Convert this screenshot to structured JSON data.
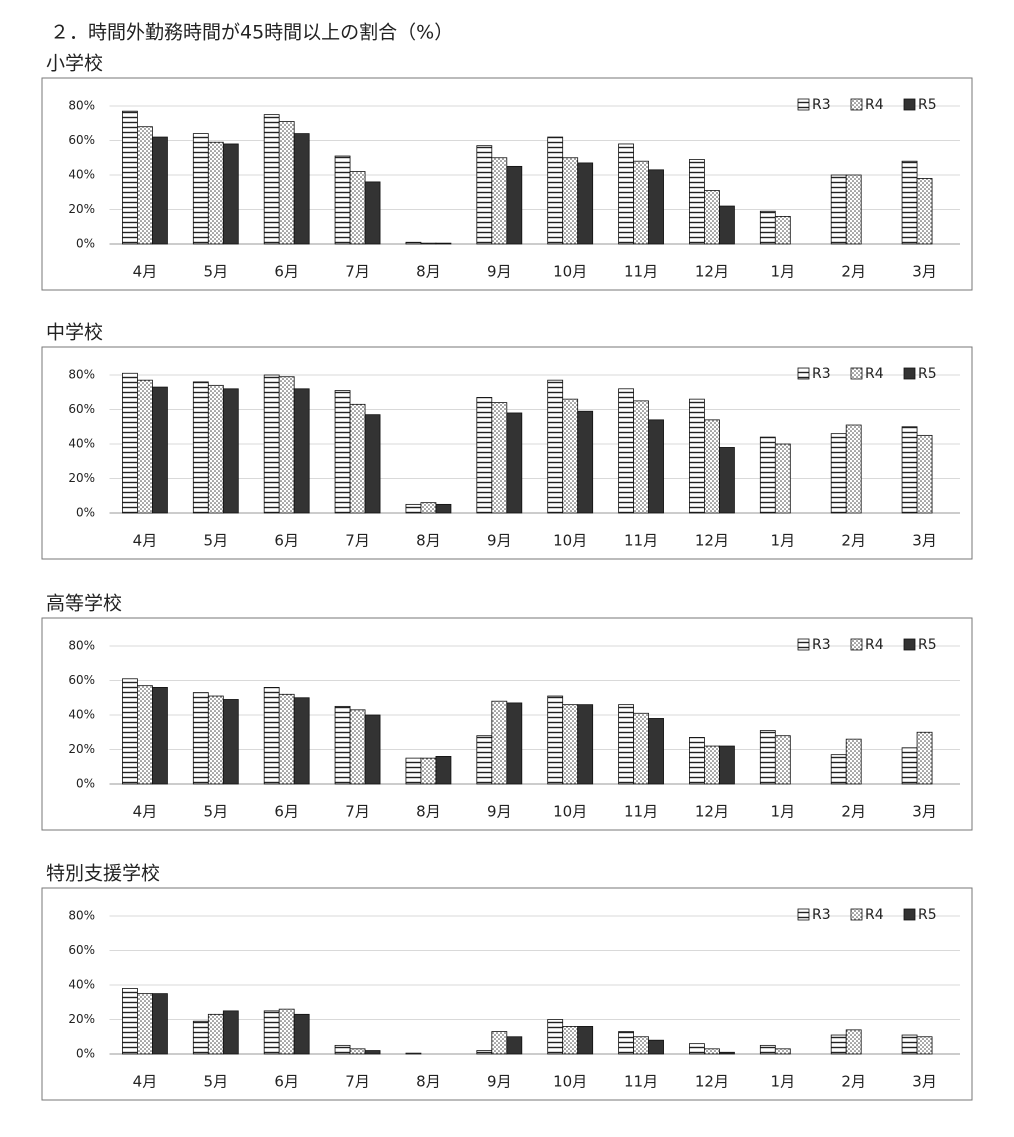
{
  "title": "２．時間外勤務時間が45時間以上の割合（%）",
  "chart_data": [
    {
      "type": "bar",
      "title": "小学校",
      "categories": [
        "4月",
        "5月",
        "6月",
        "7月",
        "8月",
        "9月",
        "10月",
        "11月",
        "12月",
        "1月",
        "2月",
        "3月"
      ],
      "series": [
        {
          "name": "R3",
          "color": "#222222",
          "pattern": "stripes",
          "values": [
            77,
            64,
            75,
            51,
            1,
            57,
            62,
            58,
            49,
            19,
            40,
            48
          ]
        },
        {
          "name": "R4",
          "color": "#222222",
          "pattern": "dots",
          "values": [
            68,
            59,
            71,
            42,
            0.5,
            50,
            50,
            48,
            31,
            16,
            40,
            38
          ]
        },
        {
          "name": "R5",
          "color": "#333333",
          "pattern": "solid",
          "values": [
            62,
            58,
            64,
            36,
            0.5,
            45,
            47,
            43,
            22,
            null,
            null,
            null
          ]
        }
      ],
      "ylim": [
        0,
        80
      ],
      "yticks": [
        {
          "value": 0,
          "label": "0%"
        },
        {
          "value": 20,
          "label": "20%"
        },
        {
          "value": 40,
          "label": "40%"
        },
        {
          "value": 60,
          "label": "60%"
        },
        {
          "value": 80,
          "label": "80%"
        }
      ],
      "grid": true,
      "legend": "top-right"
    },
    {
      "type": "bar",
      "title": "中学校",
      "categories": [
        "4月",
        "5月",
        "6月",
        "7月",
        "8月",
        "9月",
        "10月",
        "11月",
        "12月",
        "1月",
        "2月",
        "3月"
      ],
      "series": [
        {
          "name": "R3",
          "color": "#222222",
          "pattern": "stripes",
          "values": [
            81,
            76,
            80,
            71,
            5,
            67,
            77,
            72,
            66,
            44,
            46,
            50
          ]
        },
        {
          "name": "R4",
          "color": "#222222",
          "pattern": "dots",
          "values": [
            77,
            74,
            79,
            63,
            6,
            64,
            66,
            65,
            54,
            40,
            51,
            45
          ]
        },
        {
          "name": "R5",
          "color": "#333333",
          "pattern": "solid",
          "values": [
            73,
            72,
            72,
            57,
            5,
            58,
            59,
            54,
            38,
            null,
            null,
            null
          ]
        }
      ],
      "ylim": [
        0,
        80
      ],
      "yticks": [
        {
          "value": 0,
          "label": "0%"
        },
        {
          "value": 20,
          "label": "20%"
        },
        {
          "value": 40,
          "label": "40%"
        },
        {
          "value": 60,
          "label": "60%"
        },
        {
          "value": 80,
          "label": "80%"
        }
      ],
      "grid": true,
      "legend": "top-right"
    },
    {
      "type": "bar",
      "title": "高等学校",
      "categories": [
        "4月",
        "5月",
        "6月",
        "7月",
        "8月",
        "9月",
        "10月",
        "11月",
        "12月",
        "1月",
        "2月",
        "3月"
      ],
      "series": [
        {
          "name": "R3",
          "color": "#222222",
          "pattern": "stripes",
          "values": [
            61,
            53,
            56,
            45,
            15,
            28,
            51,
            46,
            27,
            31,
            17,
            21
          ]
        },
        {
          "name": "R4",
          "color": "#222222",
          "pattern": "dots",
          "values": [
            57,
            51,
            52,
            43,
            15,
            48,
            46,
            41,
            22,
            28,
            26,
            30
          ]
        },
        {
          "name": "R5",
          "color": "#333333",
          "pattern": "solid",
          "values": [
            56,
            49,
            50,
            40,
            16,
            47,
            46,
            38,
            22,
            null,
            null,
            null
          ]
        }
      ],
      "ylim": [
        0,
        80
      ],
      "yticks": [
        {
          "value": 0,
          "label": "0%"
        },
        {
          "value": 20,
          "label": "20%"
        },
        {
          "value": 40,
          "label": "40%"
        },
        {
          "value": 60,
          "label": "60%"
        },
        {
          "value": 80,
          "label": "80%"
        }
      ],
      "grid": true,
      "legend": "top-right"
    },
    {
      "type": "bar",
      "title": "特別支援学校",
      "categories": [
        "4月",
        "5月",
        "6月",
        "7月",
        "8月",
        "9月",
        "10月",
        "11月",
        "12月",
        "1月",
        "2月",
        "3月"
      ],
      "series": [
        {
          "name": "R3",
          "color": "#222222",
          "pattern": "stripes",
          "values": [
            38,
            19,
            25,
            5,
            0.5,
            2,
            20,
            13,
            6,
            5,
            11,
            11
          ]
        },
        {
          "name": "R4",
          "color": "#222222",
          "pattern": "dots",
          "values": [
            35,
            23,
            26,
            3,
            0,
            13,
            16,
            10,
            3,
            3,
            14,
            10
          ]
        },
        {
          "name": "R5",
          "color": "#333333",
          "pattern": "solid",
          "values": [
            35,
            25,
            23,
            2,
            0,
            10,
            16,
            8,
            1,
            null,
            null,
            null
          ]
        }
      ],
      "ylim": [
        0,
        80
      ],
      "yticks": [
        {
          "value": 0,
          "label": "0%"
        },
        {
          "value": 20,
          "label": "20%"
        },
        {
          "value": 40,
          "label": "40%"
        },
        {
          "value": 60,
          "label": "60%"
        },
        {
          "value": 80,
          "label": "80%"
        }
      ],
      "grid": true,
      "legend": "top-right"
    }
  ]
}
